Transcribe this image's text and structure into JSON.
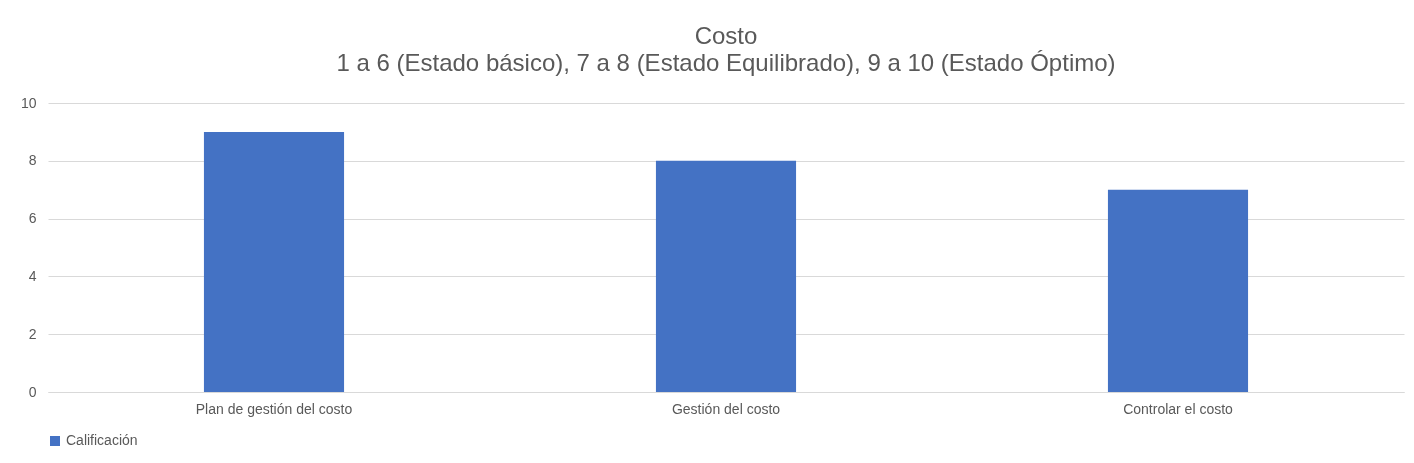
{
  "chart_data": {
    "type": "bar",
    "title": "Costo",
    "subtitle": "1 a 6 (Estado básico), 7 a 8 (Estado Equilibrado), 9 a 10 (Estado Óptimo)",
    "categories": [
      "Plan de gestión del costo",
      "Gestión del costo",
      "Controlar el costo"
    ],
    "series": [
      {
        "name": "Calificación",
        "color": "#4472c4",
        "values": [
          9,
          8,
          7
        ]
      }
    ],
    "ylim": [
      0,
      10
    ],
    "yticks": [
      0,
      2,
      4,
      6,
      8,
      10
    ],
    "grid": "y",
    "legend": "bottom"
  }
}
